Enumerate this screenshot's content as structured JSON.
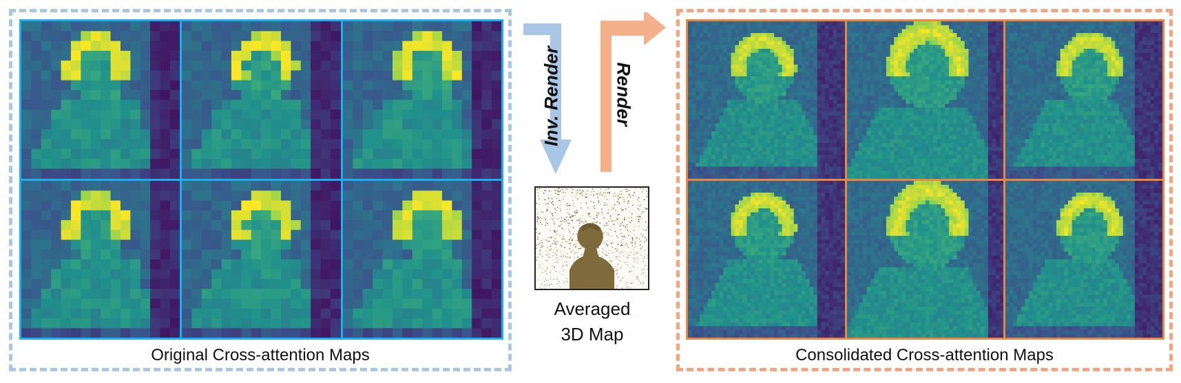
{
  "left_panel": {
    "caption": "Original Cross-attention Maps",
    "border_color": "#a9c6e6",
    "grid_color": "#1ab0ee",
    "cells": [
      {
        "name": "original-map-1"
      },
      {
        "name": "original-map-2"
      },
      {
        "name": "original-map-3"
      },
      {
        "name": "original-map-4"
      },
      {
        "name": "original-map-5"
      },
      {
        "name": "original-map-6"
      }
    ]
  },
  "middle": {
    "inverse_label": "Inv. Render",
    "render_label": "Render",
    "inverse_arrow_color": "#a9c6e6",
    "render_arrow_color": "#f4b08a",
    "map_caption_line1": "Averaged",
    "map_caption_line2": "3D Map"
  },
  "right_panel": {
    "caption": "Consolidated Cross-attention Maps",
    "border_color": "#f2a57e",
    "grid_color": "#ef8640",
    "cells": [
      {
        "name": "consolidated-map-1"
      },
      {
        "name": "consolidated-map-2"
      },
      {
        "name": "consolidated-map-3"
      },
      {
        "name": "consolidated-map-4"
      },
      {
        "name": "consolidated-map-5"
      },
      {
        "name": "consolidated-map-6"
      }
    ]
  }
}
